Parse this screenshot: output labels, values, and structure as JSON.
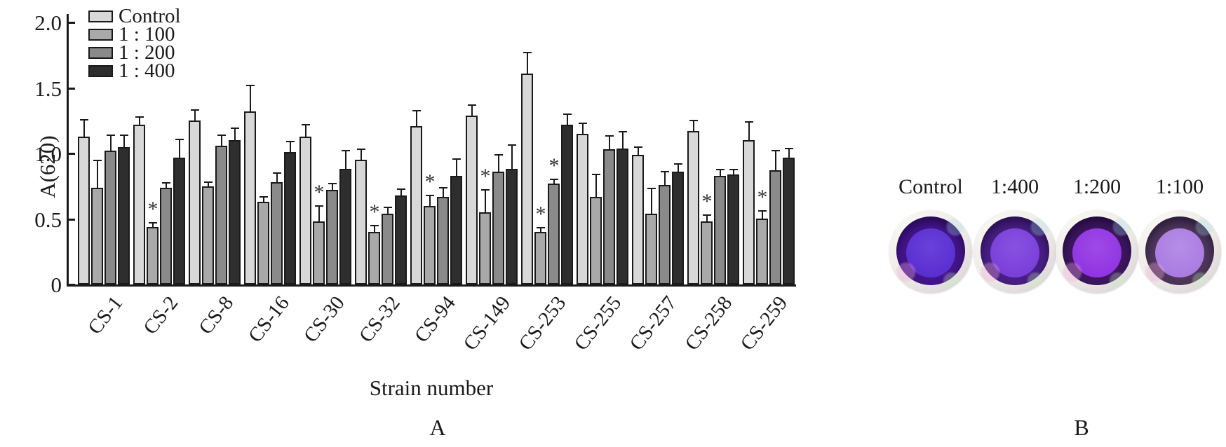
{
  "figure": {
    "a_caption": "A",
    "b_caption": "B"
  },
  "chart_data": {
    "type": "bar",
    "title": "",
    "xlabel": "Strain number",
    "ylabel": "A(620)",
    "ylim": [
      0,
      2.0
    ],
    "yticks": [
      0,
      0.5,
      1.0,
      1.5,
      2.0
    ],
    "ytick_labels": [
      "0",
      "0.5",
      "1.0",
      "1.5",
      "2.0"
    ],
    "grid": false,
    "legend_position": "upper-left",
    "categories": [
      "CS-1",
      "CS-2",
      "CS-8",
      "CS-16",
      "CS-30",
      "CS-32",
      "CS-94",
      "CS-149",
      "CS-253",
      "CS-255",
      "CS-257",
      "CS-258",
      "CS-259"
    ],
    "series": [
      {
        "name": "Control",
        "color": "#d8d8d8",
        "values": [
          1.13,
          1.22,
          1.25,
          1.32,
          1.13,
          0.95,
          1.21,
          1.29,
          1.61,
          1.15,
          0.99,
          1.17,
          1.1
        ],
        "errors": [
          0.13,
          0.06,
          0.08,
          0.2,
          0.09,
          0.08,
          0.12,
          0.08,
          0.16,
          0.08,
          0.06,
          0.08,
          0.14
        ],
        "sig": [
          false,
          false,
          false,
          false,
          false,
          false,
          false,
          false,
          false,
          false,
          false,
          false,
          false
        ]
      },
      {
        "name": "1 : 100",
        "color": "#a9a9a9",
        "values": [
          0.74,
          0.44,
          0.75,
          0.63,
          0.48,
          0.4,
          0.6,
          0.55,
          0.4,
          0.67,
          0.54,
          0.48,
          0.5
        ],
        "errors": [
          0.21,
          0.03,
          0.03,
          0.04,
          0.12,
          0.05,
          0.08,
          0.17,
          0.03,
          0.17,
          0.19,
          0.05,
          0.06
        ],
        "sig": [
          false,
          true,
          false,
          false,
          true,
          true,
          true,
          true,
          true,
          false,
          false,
          true,
          true
        ]
      },
      {
        "name": "1 : 200",
        "color": "#8a8a8a",
        "values": [
          1.02,
          0.74,
          1.06,
          0.78,
          0.72,
          0.54,
          0.67,
          0.86,
          0.77,
          1.03,
          0.76,
          0.83,
          0.87
        ],
        "errors": [
          0.12,
          0.04,
          0.08,
          0.07,
          0.05,
          0.05,
          0.07,
          0.13,
          0.03,
          0.1,
          0.1,
          0.05,
          0.15
        ],
        "sig": [
          false,
          false,
          false,
          false,
          false,
          false,
          false,
          false,
          true,
          false,
          false,
          false,
          false
        ]
      },
      {
        "name": "1 : 400",
        "color": "#2e2e2e",
        "values": [
          1.05,
          0.97,
          1.1,
          1.01,
          0.88,
          0.68,
          0.83,
          0.88,
          1.22,
          1.04,
          0.86,
          0.84,
          0.97
        ],
        "errors": [
          0.09,
          0.14,
          0.09,
          0.08,
          0.14,
          0.05,
          0.13,
          0.18,
          0.08,
          0.13,
          0.06,
          0.04,
          0.07
        ],
        "sig": [
          false,
          false,
          false,
          false,
          false,
          false,
          false,
          false,
          false,
          false,
          false,
          false,
          false
        ]
      }
    ]
  },
  "panel_b": {
    "wells": [
      {
        "label": "Control",
        "ring": "#43148a",
        "liquid": "#5a2fd0",
        "liquid_hi": "#6a41da"
      },
      {
        "label": "1:400",
        "ring": "#471f82",
        "liquid": "#7a3fd9",
        "liquid_hi": "#8852e0"
      },
      {
        "label": "1:200",
        "ring": "#3d165f",
        "liquid": "#9135e2",
        "liquid_hi": "#9d4ae6"
      },
      {
        "label": "1:100",
        "ring": "#4d3659",
        "liquid": "#aa7ce2",
        "liquid_hi": "#b68ee8"
      }
    ]
  }
}
